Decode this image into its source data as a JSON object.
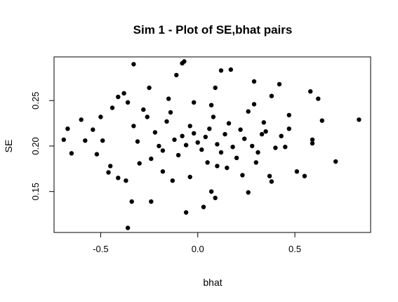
{
  "chart_data": {
    "type": "scatter",
    "title": "Sim 1 - Plot of SE,bhat pairs",
    "xlabel": "bhat",
    "ylabel": "SE",
    "xlim": [
      -0.74,
      0.89
    ],
    "ylim": [
      0.105,
      0.298
    ],
    "x_ticks": [
      -0.5,
      0.0,
      0.5
    ],
    "x_tick_labels": [
      "-0.5",
      "0.0",
      "0.5"
    ],
    "y_ticks": [
      0.15,
      0.2,
      0.25
    ],
    "y_tick_labels": [
      "0.15",
      "0.20",
      "0.25"
    ],
    "grid": false,
    "legend": "none",
    "marker_color": "#000000",
    "points": [
      [
        0.83,
        0.229
      ],
      [
        0.71,
        0.183
      ],
      [
        0.64,
        0.228
      ],
      [
        0.62,
        0.252
      ],
      [
        0.58,
        0.26
      ],
      [
        0.59,
        0.207
      ],
      [
        0.59,
        0.203
      ],
      [
        0.55,
        0.167
      ],
      [
        0.51,
        0.172
      ],
      [
        0.47,
        0.219
      ],
      [
        0.47,
        0.234
      ],
      [
        0.42,
        0.268
      ],
      [
        0.38,
        0.255
      ],
      [
        0.45,
        0.199
      ],
      [
        0.43,
        0.211
      ],
      [
        0.4,
        0.198
      ],
      [
        0.37,
        0.167
      ],
      [
        0.38,
        0.161
      ],
      [
        0.34,
        0.226
      ],
      [
        0.33,
        0.213
      ],
      [
        0.29,
        0.246
      ],
      [
        0.29,
        0.271
      ],
      [
        0.3,
        0.182
      ],
      [
        0.26,
        0.149
      ],
      [
        0.17,
        0.284
      ],
      [
        0.12,
        0.283
      ],
      [
        0.09,
        0.264
      ],
      [
        0.1,
        0.178
      ],
      [
        0.07,
        0.15
      ],
      [
        0.03,
        0.133
      ],
      [
        0.09,
        0.143
      ],
      [
        -0.04,
        0.166
      ],
      [
        -0.06,
        0.127
      ],
      [
        -0.07,
        0.293
      ],
      [
        -0.08,
        0.291
      ],
      [
        -0.11,
        0.278
      ],
      [
        -0.24,
        0.139
      ],
      [
        -0.34,
        0.139
      ],
      [
        -0.33,
        0.29
      ],
      [
        -0.37,
        0.162
      ],
      [
        -0.36,
        0.11
      ],
      [
        -0.41,
        0.165
      ],
      [
        -0.45,
        0.178
      ],
      [
        -0.5,
        0.232
      ],
      [
        -0.52,
        0.191
      ],
      [
        -0.58,
        0.206
      ],
      [
        -0.6,
        0.229
      ],
      [
        -0.65,
        0.192
      ],
      [
        -0.67,
        0.219
      ],
      [
        -0.69,
        0.207
      ],
      [
        -0.54,
        0.218
      ],
      [
        -0.49,
        0.206
      ],
      [
        -0.46,
        0.171
      ],
      [
        -0.44,
        0.242
      ],
      [
        -0.41,
        0.254
      ],
      [
        -0.38,
        0.258
      ],
      [
        -0.36,
        0.248
      ],
      [
        -0.33,
        0.222
      ],
      [
        -0.31,
        0.205
      ],
      [
        -0.3,
        0.181
      ],
      [
        -0.28,
        0.24
      ],
      [
        -0.26,
        0.232
      ],
      [
        -0.25,
        0.264
      ],
      [
        -0.22,
        0.215
      ],
      [
        -0.2,
        0.2
      ],
      [
        -0.18,
        0.195
      ],
      [
        -0.16,
        0.227
      ],
      [
        -0.14,
        0.237
      ],
      [
        -0.12,
        0.207
      ],
      [
        -0.1,
        0.19
      ],
      [
        -0.08,
        0.211
      ],
      [
        -0.06,
        0.201
      ],
      [
        -0.04,
        0.222
      ],
      [
        -0.02,
        0.214
      ],
      [
        0.0,
        0.204
      ],
      [
        0.02,
        0.196
      ],
      [
        0.04,
        0.21
      ],
      [
        0.06,
        0.219
      ],
      [
        0.08,
        0.232
      ],
      [
        0.1,
        0.202
      ],
      [
        0.12,
        0.193
      ],
      [
        0.14,
        0.213
      ],
      [
        0.16,
        0.225
      ],
      [
        0.18,
        0.199
      ],
      [
        0.2,
        0.187
      ],
      [
        0.22,
        0.218
      ],
      [
        0.24,
        0.208
      ],
      [
        0.26,
        0.238
      ],
      [
        0.28,
        0.2
      ],
      [
        0.31,
        0.193
      ],
      [
        0.35,
        0.216
      ],
      [
        -0.24,
        0.186
      ],
      [
        -0.18,
        0.172
      ],
      [
        -0.13,
        0.162
      ],
      [
        0.05,
        0.182
      ],
      [
        0.15,
        0.176
      ],
      [
        0.23,
        0.168
      ],
      [
        -0.02,
        0.248
      ],
      [
        0.07,
        0.245
      ],
      [
        -0.15,
        0.252
      ]
    ]
  }
}
